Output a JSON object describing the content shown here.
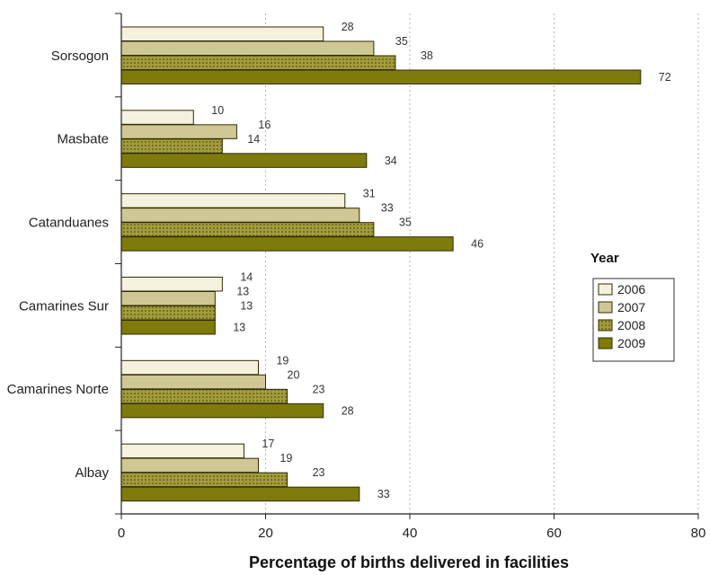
{
  "chart_data": {
    "type": "bar",
    "orientation": "horizontal",
    "categories": [
      "Sorsogon",
      "Masbate",
      "Catanduanes",
      "Camarines Sur",
      "Camarines Norte",
      "Albay"
    ],
    "series": [
      {
        "name": "2006",
        "values": [
          28,
          10,
          31,
          14,
          19,
          17
        ],
        "color": "#f4f1de",
        "pattern": "none"
      },
      {
        "name": "2007",
        "values": [
          35,
          16,
          33,
          13,
          20,
          19
        ],
        "color": "#cfc794",
        "pattern": "none"
      },
      {
        "name": "2008",
        "values": [
          38,
          14,
          35,
          13,
          23,
          23
        ],
        "color": "#a29c3c",
        "pattern": "dots"
      },
      {
        "name": "2009",
        "values": [
          72,
          34,
          46,
          13,
          28,
          33
        ],
        "color": "#7f7a0c",
        "pattern": "none"
      }
    ],
    "xlabel": "Percentage of births delivered in facilities",
    "ylabel": "",
    "xlim": [
      0,
      80
    ],
    "xticks": [
      0,
      20,
      40,
      60,
      80
    ],
    "tick_labels": [
      "0",
      "20",
      "40",
      "60",
      "80"
    ],
    "grid": "vertical-dotted",
    "legend": {
      "title": "Year",
      "placement": "right"
    }
  }
}
